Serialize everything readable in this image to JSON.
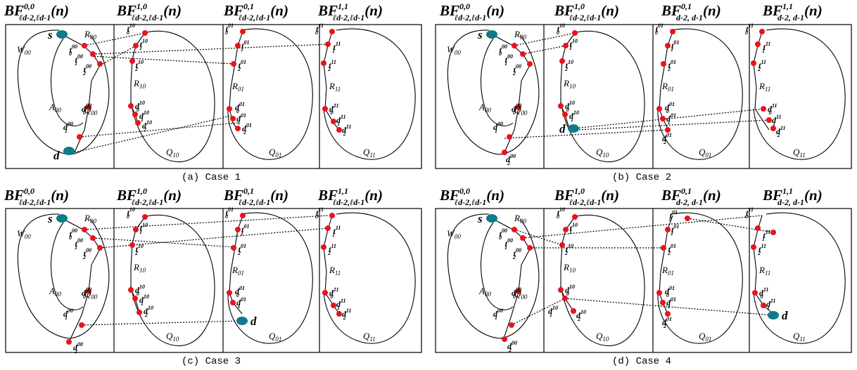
{
  "figure": {
    "header": {
      "b00": {
        "main": "BF",
        "sup": "0,0",
        "sub": "ℓd-2,ℓd-1",
        "arg": "(n)"
      },
      "b10": {
        "main": "BF",
        "sup": "1,0",
        "sub": "ℓd-2,ℓd-1",
        "arg": "(n)"
      },
      "b01": {
        "main": "BF",
        "sup": "0,1",
        "sub": "ℓd-2,ℓd-1",
        "arg": "(n)"
      },
      "b11": {
        "main": "BF",
        "sup": "1,1",
        "sub": "ℓd-2,ℓd-1",
        "arg": "(n)"
      },
      "b01_alt": {
        "sub": "d-2,  d-1"
      },
      "b11_alt": {
        "sub": "d-2,  d-1"
      }
    },
    "region_labels": {
      "W00": "W",
      "W00_sub": "00",
      "A00": "A",
      "A00_sub": "00",
      "Q00": "Q",
      "Q00_sub": "00",
      "R00": "R",
      "R00_sub": "00",
      "R10": "R",
      "R10_sub": "10",
      "R01": "R",
      "R01_sub": "01",
      "R11": "R",
      "R11_sub": "11",
      "Q10": "Q",
      "Q10_sub": "10",
      "Q01": "Q",
      "Q01_sub": "01",
      "Q11": "Q",
      "Q11_sub": "11"
    },
    "node_labels": {
      "s": "s",
      "d": "d",
      "t": "t",
      "dd": "d",
      "i0": "0",
      "i1": "1",
      "i2": "2",
      "s00": "00",
      "s10": "10",
      "s01": "01",
      "s11": "11"
    },
    "captions": [
      "(a) Case 1",
      "(b) Case 2",
      "(c) Case 3",
      "(d) Case 4"
    ],
    "colors": {
      "node": "#e8141b",
      "terminal": "#0e7a8a",
      "frame": "#000000"
    }
  }
}
